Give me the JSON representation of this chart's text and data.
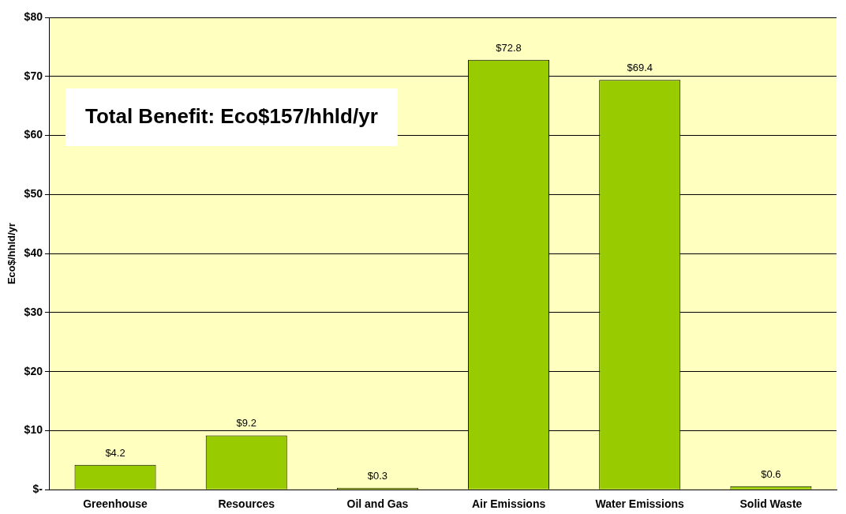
{
  "chart_data": {
    "type": "bar",
    "ylabel": "Eco$/hhld/yr",
    "categories": [
      "Greenhouse",
      "Resources",
      "Oil and Gas",
      "Air Emissions",
      "Water Emissions",
      "Solid Waste"
    ],
    "values": [
      4.2,
      9.2,
      0.3,
      72.8,
      69.4,
      0.6
    ],
    "value_labels": [
      "$4.2",
      "$9.2",
      "$0.3",
      "$72.8",
      "$69.4",
      "$0.6"
    ],
    "color": "#99cc00",
    "ylim": [
      0,
      80
    ],
    "yticks": [
      {
        "value": 0,
        "label": "$-"
      },
      {
        "value": 10,
        "label": "$10"
      },
      {
        "value": 20,
        "label": "$20"
      },
      {
        "value": 30,
        "label": "$30"
      },
      {
        "value": 40,
        "label": "$40"
      },
      {
        "value": 50,
        "label": "$50"
      },
      {
        "value": 60,
        "label": "$60"
      },
      {
        "value": 70,
        "label": "$70"
      },
      {
        "value": 80,
        "label": "$80"
      }
    ],
    "grid": "y",
    "legend": false,
    "annotations": [
      "Total Benefit: Eco$157/hhld/yr"
    ]
  }
}
